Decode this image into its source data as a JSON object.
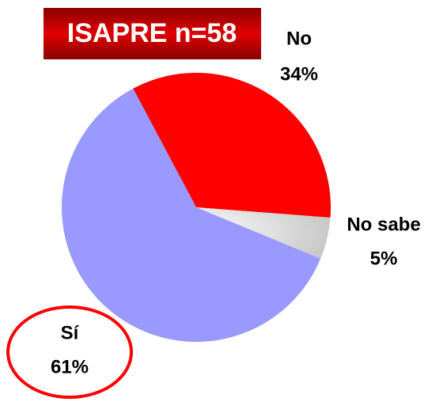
{
  "chart_data": {
    "type": "pie",
    "title": "ISAPRE n=58",
    "categories": [
      "No",
      "No sabe",
      "Sí"
    ],
    "values": [
      34,
      5,
      61
    ],
    "value_labels": [
      "34%",
      "5%",
      "61%"
    ],
    "colors": [
      "#ff0000",
      "#e6e6e6",
      "#9999ff"
    ]
  }
}
